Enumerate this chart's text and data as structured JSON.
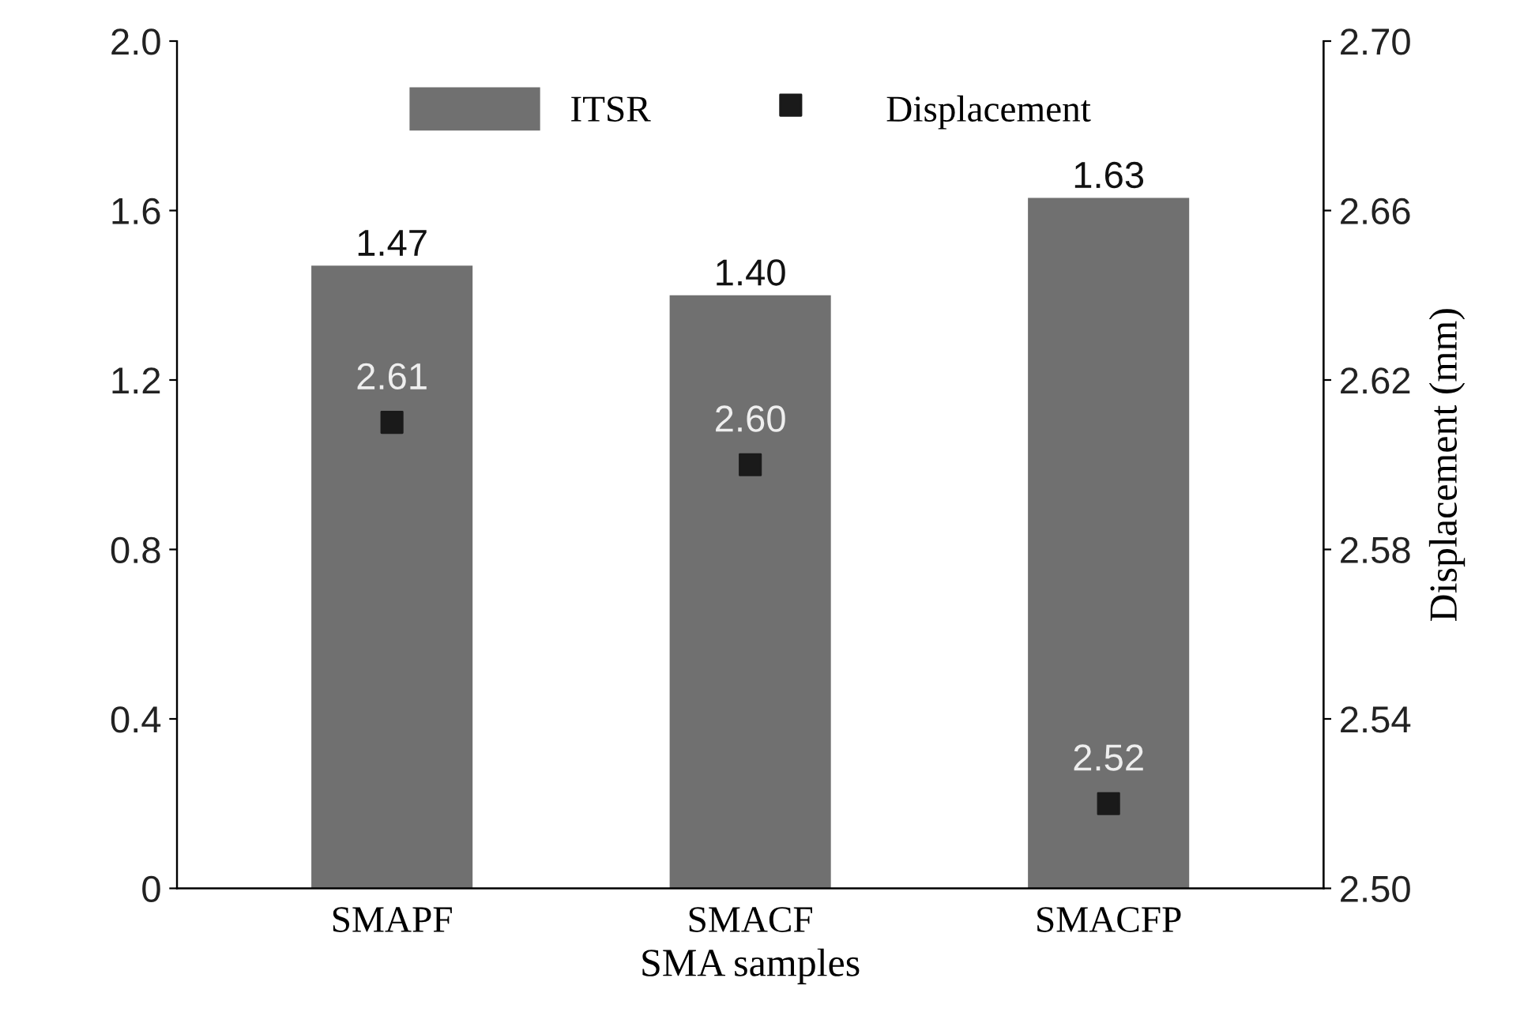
{
  "chart_data": {
    "type": "bar",
    "xlabel": "SMA samples",
    "y2label": "Displacement (mm)",
    "categories": [
      "SMAPF",
      "SMACF",
      "SMACFP"
    ],
    "series": [
      {
        "name": "ITSR",
        "color": "#707070",
        "values": [
          1.47,
          1.4,
          1.63
        ],
        "data_labels": true,
        "value_labels": [
          "1.47",
          "1.40",
          "1.63"
        ]
      },
      {
        "name": "Displacement",
        "type": "scatter",
        "axis": "y2",
        "color": "#1a1a1a",
        "marker": "square",
        "values": [
          2.61,
          2.6,
          2.52
        ],
        "value_labels": [
          "2.61",
          "2.60",
          "2.52"
        ]
      }
    ],
    "ylim": [
      0,
      2.0
    ],
    "yticks": [
      0,
      0.4,
      0.8,
      1.2,
      1.6,
      {
        "value": 2.0,
        "label": "2.0"
      }
    ],
    "y2lim": [
      2.5,
      2.7
    ],
    "y2ticks": [
      {
        "value": 2.5,
        "label": "2.50"
      },
      2.54,
      2.58,
      2.62,
      2.66,
      {
        "value": 2.7,
        "label": "2.70"
      }
    ],
    "legend": "top",
    "grid": false
  }
}
